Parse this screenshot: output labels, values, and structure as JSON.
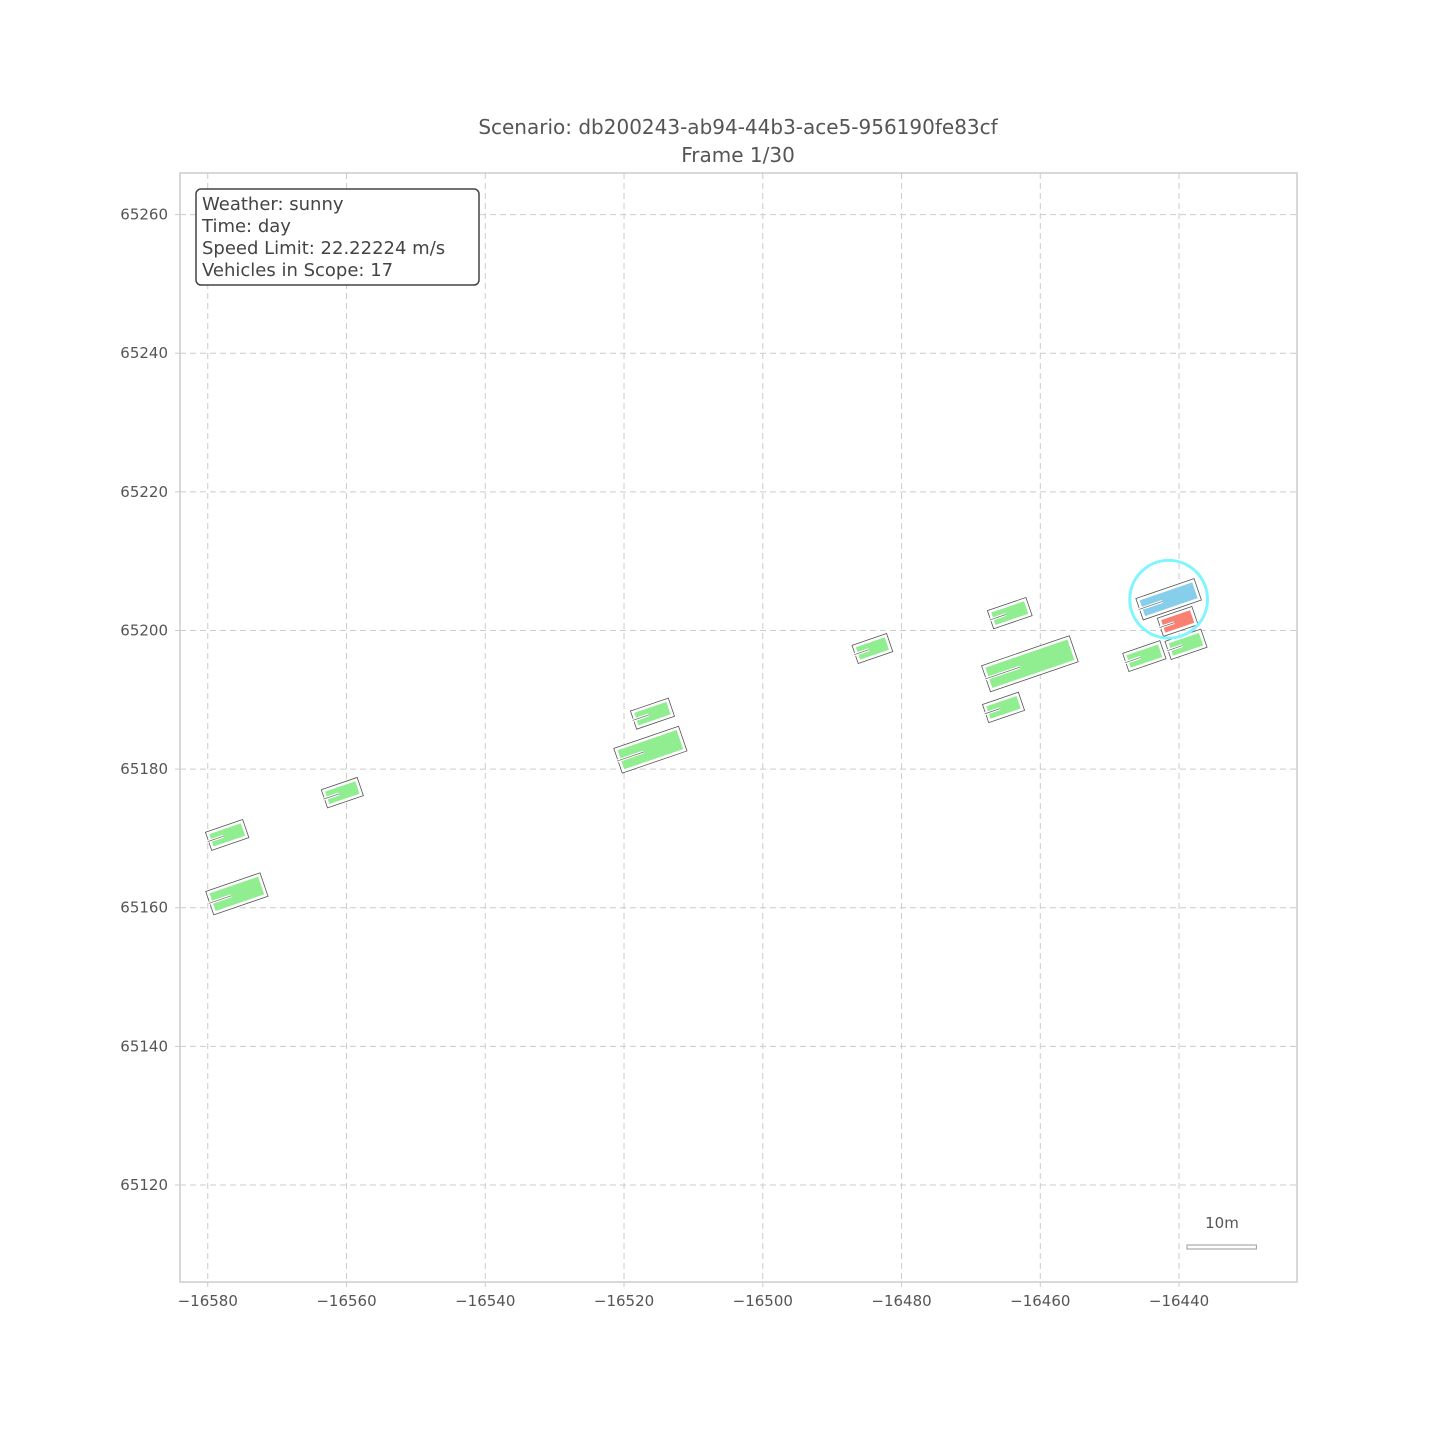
{
  "chart_data": {
    "type": "scatter",
    "title": "Scenario: db200243-ab94-44b3-ace5-956190fe83cf",
    "subtitle": "Frame 1/30",
    "xlabel": "",
    "ylabel": "",
    "xlim": [
      -16584,
      -16423
    ],
    "ylim": [
      65106,
      65266
    ],
    "xticks": [
      -16580,
      -16560,
      -16540,
      -16520,
      -16500,
      -16480,
      -16460,
      -16440
    ],
    "xtick_labels": [
      "−16580",
      "−16560",
      "−16540",
      "−16520",
      "−16500",
      "−16480",
      "−16460",
      "−16440"
    ],
    "yticks": [
      65120,
      65140,
      65160,
      65180,
      65200,
      65220,
      65240,
      65260
    ],
    "ytick_labels": [
      "65120",
      "65140",
      "65160",
      "65180",
      "65200",
      "65220",
      "65240",
      "65260"
    ],
    "grid": true,
    "info_box": {
      "lines": [
        "Weather: sunny",
        "Time: day",
        "Speed Limit: 22.22224 m/s",
        "Vehicles in Scope: 17"
      ]
    },
    "scale_bar": {
      "label": "10m",
      "length": 10
    },
    "colors": {
      "other_vehicle": "#90ee90",
      "ego_vehicle": "#87ceeb",
      "target_vehicle": "#fa8072",
      "highlight_circle": "#7ff5ff",
      "grid": "#cccccc"
    },
    "highlight": {
      "x": -16441.5,
      "y": 65204.5,
      "radius": 5.6
    },
    "vehicles": [
      {
        "role": "ego",
        "x": -16441.5,
        "y": 65204.5,
        "length": 8.0,
        "width": 2.4,
        "heading": 0.33
      },
      {
        "role": "target",
        "x": -16440.2,
        "y": 65201.3,
        "length": 4.4,
        "width": 1.9,
        "heading": 0.33
      },
      {
        "role": "other",
        "x": -16439.0,
        "y": 65198.0,
        "length": 4.6,
        "width": 1.9,
        "heading": 0.33
      },
      {
        "role": "other",
        "x": -16445.0,
        "y": 65196.3,
        "length": 4.8,
        "width": 1.9,
        "heading": 0.33
      },
      {
        "role": "other",
        "x": -16464.4,
        "y": 65202.5,
        "length": 5.0,
        "width": 1.9,
        "heading": 0.33
      },
      {
        "role": "other",
        "x": -16461.5,
        "y": 65195.2,
        "length": 12.5,
        "width": 3.1,
        "heading": 0.33
      },
      {
        "role": "other",
        "x": -16465.3,
        "y": 65188.9,
        "length": 4.6,
        "width": 1.9,
        "heading": 0.33
      },
      {
        "role": "other",
        "x": -16484.2,
        "y": 65197.4,
        "length": 4.4,
        "width": 1.9,
        "heading": 0.33
      },
      {
        "role": "other",
        "x": -16515.9,
        "y": 65188.0,
        "length": 4.9,
        "width": 1.9,
        "heading": 0.33
      },
      {
        "role": "other",
        "x": -16516.2,
        "y": 65182.8,
        "length": 9.0,
        "width": 2.9,
        "heading": 0.33
      },
      {
        "role": "other",
        "x": -16560.6,
        "y": 65176.6,
        "length": 4.6,
        "width": 1.9,
        "heading": 0.33
      },
      {
        "role": "other",
        "x": -16577.2,
        "y": 65170.5,
        "length": 4.8,
        "width": 1.9,
        "heading": 0.33
      },
      {
        "role": "other",
        "x": -16575.8,
        "y": 65162.0,
        "length": 7.4,
        "width": 2.7,
        "heading": 0.33
      }
    ]
  }
}
